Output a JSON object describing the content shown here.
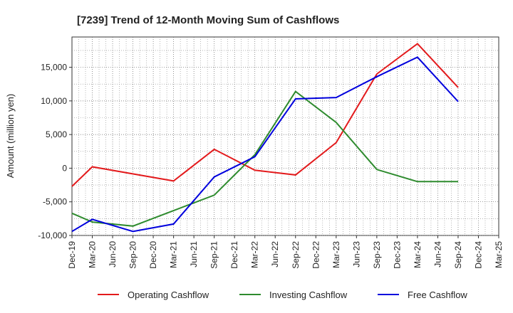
{
  "chart_data": {
    "type": "line",
    "title": "[7239]  Trend of 12-Month Moving Sum of Cashflows",
    "xlabel": "",
    "ylabel": "Amount (million yen)",
    "categories": [
      "Dec-19",
      "Mar-20",
      "Jun-20",
      "Sep-20",
      "Dec-20",
      "Mar-21",
      "Jun-21",
      "Sep-21",
      "Dec-21",
      "Mar-22",
      "Jun-22",
      "Sep-22",
      "Dec-22",
      "Mar-23",
      "Jun-23",
      "Sep-23",
      "Dec-23",
      "Mar-24",
      "Jun-24",
      "Sep-24",
      "Dec-24",
      "Mar-25"
    ],
    "ylim": [
      -10000,
      19500
    ],
    "yticks": [
      -10000,
      -5000,
      0,
      5000,
      10000,
      15000
    ],
    "ytick_labels": [
      "-10,000",
      "-5,000",
      "0",
      "5,000",
      "10,000",
      "15,000"
    ],
    "grid": true,
    "legend_position": "bottom",
    "series": [
      {
        "name": "Operating Cashflow",
        "color": "#e31a1c",
        "x": [
          "Dec-19",
          "Mar-20",
          "Mar-21",
          "Sep-21",
          "Mar-22",
          "Sep-22",
          "Mar-23",
          "Sep-23",
          "Mar-24",
          "Sep-24"
        ],
        "values": [
          -2700,
          200,
          -1900,
          2800,
          -300,
          -1000,
          3800,
          14000,
          18500,
          12000
        ]
      },
      {
        "name": "Investing Cashflow",
        "color": "#2e8b2e",
        "x": [
          "Dec-19",
          "Mar-20",
          "Sep-20",
          "Sep-21",
          "Mar-22",
          "Sep-22",
          "Mar-23",
          "Sep-23",
          "Mar-24",
          "Sep-24"
        ],
        "values": [
          -6700,
          -8000,
          -8600,
          -4000,
          2000,
          11400,
          6800,
          -200,
          -2000,
          -2000
        ]
      },
      {
        "name": "Free Cashflow",
        "color": "#0000dd",
        "x": [
          "Dec-19",
          "Mar-20",
          "Sep-20",
          "Mar-21",
          "Sep-21",
          "Mar-22",
          "Sep-22",
          "Mar-23",
          "Sep-23",
          "Mar-24",
          "Sep-24"
        ],
        "values": [
          -9400,
          -7600,
          -9400,
          -8300,
          -1300,
          1700,
          10300,
          10500,
          13600,
          16500,
          9900
        ]
      }
    ]
  }
}
